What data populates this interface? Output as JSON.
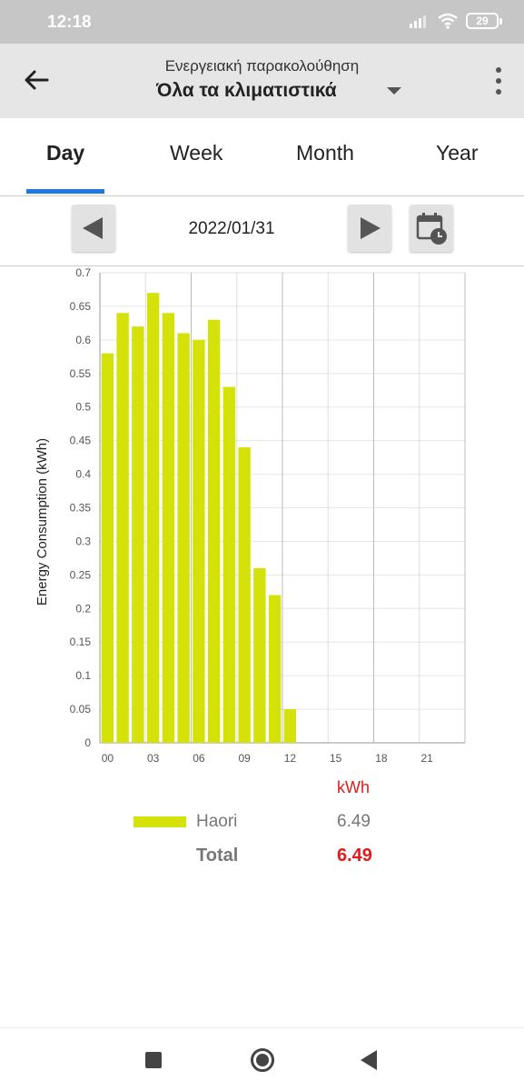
{
  "status": {
    "time": "12:18",
    "battery": "29"
  },
  "header": {
    "subtitle": "Ενεργειακή παρακολούθηση",
    "title": "Όλα τα κλιματιστικά"
  },
  "tabs": [
    {
      "label": "Day",
      "active": true
    },
    {
      "label": "Week",
      "active": false
    },
    {
      "label": "Month",
      "active": false
    },
    {
      "label": "Year",
      "active": false
    }
  ],
  "date": "2022/01/31",
  "colors": {
    "accent": "#1f78e0",
    "bar": "#d4e20a",
    "total": "#e01b1b"
  },
  "chart_data": {
    "type": "bar",
    "ylabel": "Energy Consumption (kWh)",
    "xlabel": "",
    "ylim": [
      0,
      0.7
    ],
    "yticks": [
      "0",
      "0.05",
      "0.1",
      "0.15",
      "0.2",
      "0.25",
      "0.3",
      "0.35",
      "0.4",
      "0.45",
      "0.5",
      "0.55",
      "0.6",
      "0.65",
      "0.7"
    ],
    "xticks": [
      "00",
      "03",
      "06",
      "09",
      "12",
      "15",
      "18",
      "21"
    ],
    "xlim": [
      0,
      24
    ],
    "grid": true,
    "hours": [
      0,
      1,
      2,
      3,
      4,
      5,
      6,
      7,
      8,
      9,
      10,
      11,
      12
    ],
    "values": [
      0.58,
      0.64,
      0.62,
      0.67,
      0.64,
      0.61,
      0.6,
      0.63,
      0.53,
      0.44,
      0.26,
      0.22,
      0.05
    ],
    "series": [
      {
        "name": "Haori",
        "color": "#d4e20a"
      }
    ]
  },
  "legend": {
    "unit": "kWh",
    "items": [
      {
        "name": "Haori",
        "value": "6.49"
      }
    ],
    "total_label": "Total",
    "total_value": "6.49"
  }
}
